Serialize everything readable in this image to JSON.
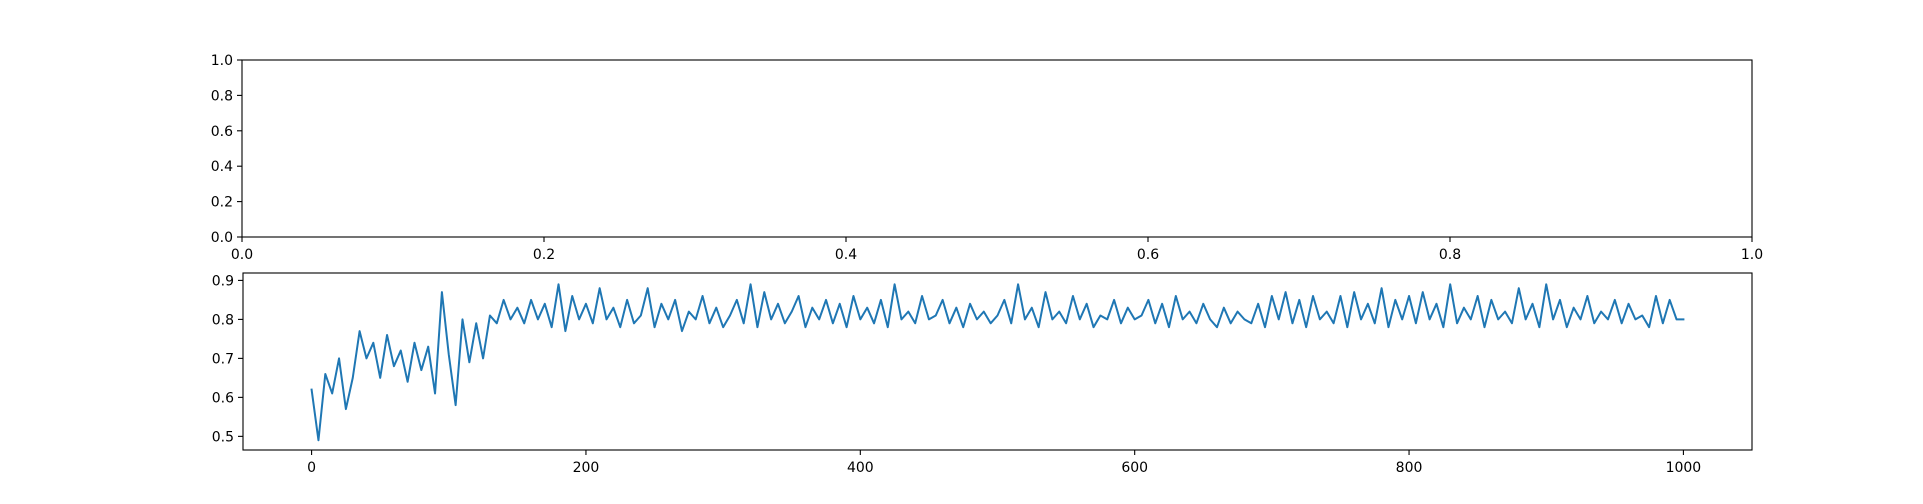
{
  "chart_data": [
    {
      "type": "line",
      "xlim": [
        0,
        1
      ],
      "ylim": [
        0,
        1
      ],
      "xticks": [
        {
          "value": 0,
          "label": "0.0"
        },
        {
          "value": 0.2,
          "label": "0.2"
        },
        {
          "value": 0.4,
          "label": "0.4"
        },
        {
          "value": 0.6,
          "label": "0.6"
        },
        {
          "value": 0.8,
          "label": "0.8"
        },
        {
          "value": 1,
          "label": "1.0"
        }
      ],
      "yticks": [
        {
          "value": 0,
          "label": "0.0"
        },
        {
          "value": 0.2,
          "label": "0.2"
        },
        {
          "value": 0.4,
          "label": "0.4"
        },
        {
          "value": 0.6,
          "label": "0.6"
        },
        {
          "value": 0.8,
          "label": "0.8"
        },
        {
          "value": 1,
          "label": "1.0"
        }
      ],
      "series": []
    },
    {
      "type": "line",
      "xlim": [
        -50,
        1050
      ],
      "ylim": [
        0.465,
        0.919
      ],
      "xticks": [
        0,
        200,
        400,
        600,
        800,
        1000
      ],
      "yticks": [
        0.5,
        0.6,
        0.7,
        0.8,
        0.9
      ],
      "x": [
        0,
        5,
        10,
        15,
        20,
        25,
        30,
        35,
        40,
        45,
        50,
        55,
        60,
        65,
        70,
        75,
        80,
        85,
        90,
        95,
        100,
        105,
        110,
        115,
        120,
        125,
        130,
        135,
        140,
        145,
        150,
        155,
        160,
        165,
        170,
        175,
        180,
        185,
        190,
        195,
        200,
        205,
        210,
        215,
        220,
        225,
        230,
        235,
        240,
        245,
        250,
        255,
        260,
        265,
        270,
        275,
        280,
        285,
        290,
        295,
        300,
        305,
        310,
        315,
        320,
        325,
        330,
        335,
        340,
        345,
        350,
        355,
        360,
        365,
        370,
        375,
        380,
        385,
        390,
        395,
        400,
        405,
        410,
        415,
        420,
        425,
        430,
        435,
        440,
        445,
        450,
        455,
        460,
        465,
        470,
        475,
        480,
        485,
        490,
        495,
        500,
        505,
        510,
        515,
        520,
        525,
        530,
        535,
        540,
        545,
        550,
        555,
        560,
        565,
        570,
        575,
        580,
        585,
        590,
        595,
        600,
        605,
        610,
        615,
        620,
        625,
        630,
        635,
        640,
        645,
        650,
        655,
        660,
        665,
        670,
        675,
        680,
        685,
        690,
        695,
        700,
        705,
        710,
        715,
        720,
        725,
        730,
        735,
        740,
        745,
        750,
        755,
        760,
        765,
        770,
        775,
        780,
        785,
        790,
        795,
        800,
        805,
        810,
        815,
        820,
        825,
        830,
        835,
        840,
        845,
        850,
        855,
        860,
        865,
        870,
        875,
        880,
        885,
        890,
        895,
        900,
        905,
        910,
        915,
        920,
        925,
        930,
        935,
        940,
        945,
        950,
        955,
        960,
        965,
        970,
        975,
        980,
        985,
        990,
        995,
        1000
      ],
      "series": [
        {
          "color": "#1f77b4",
          "values": [
            0.62,
            0.49,
            0.66,
            0.61,
            0.7,
            0.57,
            0.65,
            0.77,
            0.7,
            0.74,
            0.65,
            0.76,
            0.68,
            0.72,
            0.64,
            0.74,
            0.67,
            0.73,
            0.61,
            0.87,
            0.71,
            0.58,
            0.8,
            0.69,
            0.79,
            0.7,
            0.81,
            0.79,
            0.85,
            0.8,
            0.83,
            0.79,
            0.85,
            0.8,
            0.84,
            0.78,
            0.89,
            0.77,
            0.86,
            0.8,
            0.84,
            0.79,
            0.88,
            0.8,
            0.83,
            0.78,
            0.85,
            0.79,
            0.81,
            0.88,
            0.78,
            0.84,
            0.8,
            0.85,
            0.77,
            0.82,
            0.8,
            0.86,
            0.79,
            0.83,
            0.78,
            0.81,
            0.85,
            0.79,
            0.89,
            0.78,
            0.87,
            0.8,
            0.84,
            0.79,
            0.82,
            0.86,
            0.78,
            0.83,
            0.8,
            0.85,
            0.79,
            0.84,
            0.78,
            0.86,
            0.8,
            0.83,
            0.79,
            0.85,
            0.78,
            0.89,
            0.8,
            0.82,
            0.79,
            0.86,
            0.8,
            0.81,
            0.85,
            0.79,
            0.83,
            0.78,
            0.84,
            0.8,
            0.82,
            0.79,
            0.81,
            0.85,
            0.79,
            0.89,
            0.8,
            0.83,
            0.78,
            0.87,
            0.8,
            0.82,
            0.79,
            0.86,
            0.8,
            0.84,
            0.78,
            0.81,
            0.8,
            0.85,
            0.79,
            0.83,
            0.8,
            0.81,
            0.85,
            0.79,
            0.84,
            0.78,
            0.86,
            0.8,
            0.82,
            0.79,
            0.84,
            0.8,
            0.78,
            0.83,
            0.79,
            0.82,
            0.8,
            0.79,
            0.84,
            0.78,
            0.86,
            0.8,
            0.87,
            0.79,
            0.85,
            0.78,
            0.86,
            0.8,
            0.82,
            0.79,
            0.86,
            0.78,
            0.87,
            0.8,
            0.84,
            0.79,
            0.88,
            0.78,
            0.85,
            0.8,
            0.86,
            0.79,
            0.87,
            0.8,
            0.84,
            0.78,
            0.89,
            0.79,
            0.83,
            0.8,
            0.86,
            0.78,
            0.85,
            0.8,
            0.82,
            0.79,
            0.88,
            0.8,
            0.84,
            0.78,
            0.89,
            0.8,
            0.85,
            0.78,
            0.83,
            0.8,
            0.86,
            0.79,
            0.82,
            0.8,
            0.85,
            0.79,
            0.84,
            0.8,
            0.81,
            0.78,
            0.86,
            0.79,
            0.85,
            0.8,
            0.8
          ]
        }
      ]
    }
  ]
}
